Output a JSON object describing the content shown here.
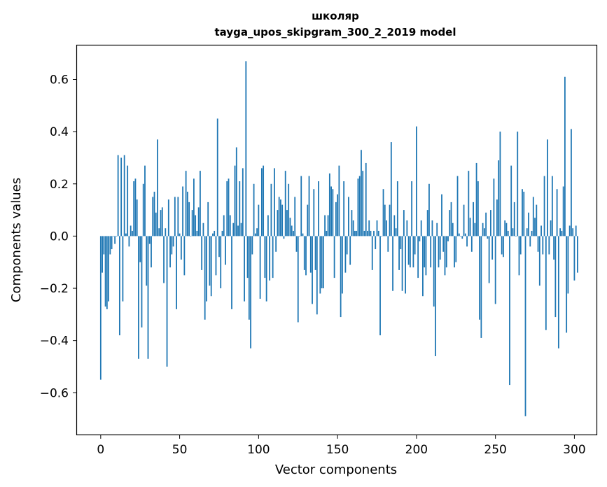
{
  "chart_data": {
    "type": "bar",
    "title": "школяр",
    "subtitle": "tayga_upos_skipgram_300_2_2019 model",
    "xlabel": "Vector components",
    "ylabel": "Components values",
    "xlim": [
      -15,
      314
    ],
    "ylim": [
      -0.76,
      0.73
    ],
    "xticks": [
      0,
      50,
      100,
      150,
      200,
      250,
      300
    ],
    "xtick_labels": [
      "0",
      "50",
      "100",
      "150",
      "200",
      "250",
      "300"
    ],
    "yticks": [
      -0.6,
      -0.4,
      -0.2,
      0.0,
      0.2,
      0.4,
      0.6
    ],
    "ytick_labels": [
      "−0.6",
      "−0.4",
      "−0.2",
      "0.0",
      "0.2",
      "0.4",
      "0.6"
    ],
    "bar_color": "#1f77b4",
    "values": [
      -0.55,
      -0.14,
      -0.07,
      -0.27,
      -0.28,
      -0.25,
      -0.07,
      -0.05,
      0.0,
      -0.03,
      0.0,
      0.31,
      -0.38,
      0.3,
      -0.25,
      0.31,
      0.01,
      0.27,
      -0.04,
      0.04,
      0.02,
      0.21,
      0.22,
      0.14,
      -0.47,
      -0.1,
      -0.35,
      0.2,
      0.27,
      -0.19,
      -0.47,
      -0.03,
      -0.12,
      0.15,
      0.17,
      0.09,
      0.37,
      0.03,
      0.1,
      0.11,
      -0.18,
      0.03,
      -0.5,
      0.14,
      -0.12,
      -0.07,
      -0.04,
      0.15,
      -0.28,
      0.15,
      0.01,
      -0.09,
      0.19,
      -0.15,
      0.25,
      0.17,
      0.13,
      0.0,
      0.1,
      0.22,
      0.08,
      0.02,
      0.11,
      0.25,
      -0.13,
      0.05,
      -0.32,
      -0.25,
      0.13,
      -0.19,
      -0.23,
      0.01,
      0.02,
      -0.15,
      0.45,
      -0.08,
      -0.2,
      0.02,
      0.08,
      -0.11,
      0.21,
      0.22,
      0.08,
      -0.28,
      0.05,
      0.27,
      0.34,
      0.04,
      0.21,
      0.05,
      0.26,
      -0.25,
      0.67,
      -0.16,
      -0.32,
      -0.43,
      -0.07,
      0.2,
      0.01,
      0.03,
      0.12,
      -0.24,
      0.26,
      0.27,
      -0.16,
      -0.25,
      0.08,
      -0.17,
      0.2,
      -0.16,
      0.26,
      -0.06,
      0.1,
      0.15,
      0.14,
      0.12,
      -0.01,
      0.25,
      0.1,
      0.2,
      0.07,
      0.04,
      0.02,
      0.15,
      -0.06,
      -0.33,
      0.0,
      0.23,
      0.01,
      -0.13,
      -0.15,
      0.12,
      0.23,
      -0.14,
      -0.26,
      0.18,
      -0.13,
      -0.3,
      0.21,
      -0.22,
      -0.2,
      -0.2,
      0.08,
      0.02,
      0.08,
      0.24,
      0.19,
      0.18,
      -0.16,
      0.13,
      0.16,
      0.27,
      -0.31,
      -0.22,
      0.21,
      -0.14,
      -0.07,
      0.15,
      -0.11,
      0.1,
      0.06,
      0.02,
      0.02,
      0.22,
      0.23,
      0.33,
      0.25,
      0.02,
      0.28,
      0.02,
      0.06,
      0.02,
      -0.13,
      0.02,
      -0.05,
      0.06,
      0.02,
      -0.38,
      0.0,
      0.18,
      0.12,
      0.06,
      -0.06,
      0.12,
      0.36,
      -0.21,
      0.08,
      0.03,
      0.21,
      -0.13,
      -0.05,
      -0.21,
      0.1,
      -0.22,
      0.06,
      -0.11,
      -0.12,
      0.21,
      -0.12,
      -0.07,
      0.42,
      -0.16,
      -0.02,
      0.06,
      -0.23,
      -0.12,
      -0.15,
      0.1,
      0.2,
      -0.12,
      0.06,
      -0.27,
      -0.46,
      0.05,
      -0.12,
      -0.09,
      0.16,
      -0.06,
      -0.15,
      -0.12,
      -0.02,
      0.1,
      0.13,
      0.05,
      -0.12,
      -0.1,
      0.23,
      0.01,
      0.0,
      -0.01,
      0.12,
      0.01,
      -0.04,
      0.25,
      0.07,
      -0.06,
      0.13,
      0.05,
      0.28,
      0.21,
      -0.32,
      -0.39,
      0.05,
      0.03,
      0.09,
      -0.01,
      -0.18,
      0.1,
      -0.09,
      0.22,
      -0.26,
      0.14,
      0.29,
      0.4,
      -0.07,
      -0.08,
      0.06,
      0.05,
      0.02,
      -0.57,
      0.27,
      0.03,
      0.13,
      0.0,
      0.4,
      -0.15,
      -0.07,
      0.18,
      0.17,
      -0.69,
      0.03,
      0.09,
      -0.04,
      0.02,
      0.15,
      0.07,
      0.12,
      -0.06,
      -0.19,
      0.04,
      -0.07,
      0.23,
      -0.36,
      0.37,
      -0.07,
      0.06,
      0.23,
      -0.09,
      -0.31,
      0.18,
      -0.43,
      0.03,
      0.02,
      0.19,
      0.61,
      -0.37,
      -0.22,
      0.04,
      0.41,
      0.03,
      -0.17,
      0.04,
      -0.14
    ]
  }
}
